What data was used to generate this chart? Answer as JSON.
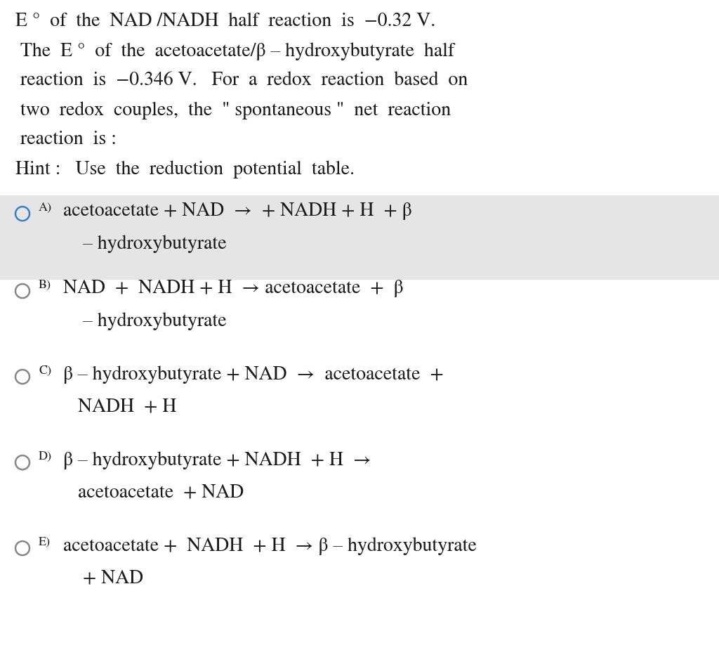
{
  "bg_color": "#ffffff",
  "question_text_lines": [
    "Eᴙ°  of  the  NAD⁺/NADH  half  reaction  is  −0.32 V.",
    " The  Eᴙ°  of  the  acetoacetate/β – hydroxybutyrate  half",
    " reaction  is  −0.346 V.   For  a  redox  reaction  based  on",
    " two  redox  couples,  the  \" spontaneous \"  net  reaction",
    " reaction  is :",
    "Hint :   Use  the  reduction  potential  table."
  ],
  "options": [
    {
      "label": "A)",
      "line1": "acetoacetate + NAD⁺ →  + NADH + H⁺ + β",
      "line2": "    – hydroxybutyrate",
      "highlighted": true,
      "circle_color": "#3a7fc1"
    },
    {
      "label": "B)",
      "line1": "NAD⁺ +  NADH + H⁺ → acetoacetate  +  β",
      "line2": "    – hydroxybutyrate",
      "highlighted": false,
      "circle_color": "#888888"
    },
    {
      "label": "C)",
      "line1": "β – hydroxybutyrate + NAD⁺ →  acetoacetate  +",
      "line2": "   NADH  + H⁺",
      "highlighted": false,
      "circle_color": "#888888"
    },
    {
      "label": "D)",
      "line1": "β – hydroxybutyrate + NADH  + H⁺ →",
      "line2": "   acetoacetate  + NAD⁺",
      "highlighted": false,
      "circle_color": "#888888"
    },
    {
      "label": "E)",
      "line1": "acetoacetate +  NADH  + H⁺ → β – hydroxybutyrate",
      "line2": "    + NAD⁺",
      "highlighted": false,
      "circle_color": "#888888"
    }
  ],
  "font_size_q": 20,
  "font_size_o": 20,
  "font_size_label": 13,
  "highlight_color": "#e5e5e5",
  "text_color": "#1a1a1a",
  "figsize": [
    10.24,
    9.42
  ],
  "dpi": 100
}
